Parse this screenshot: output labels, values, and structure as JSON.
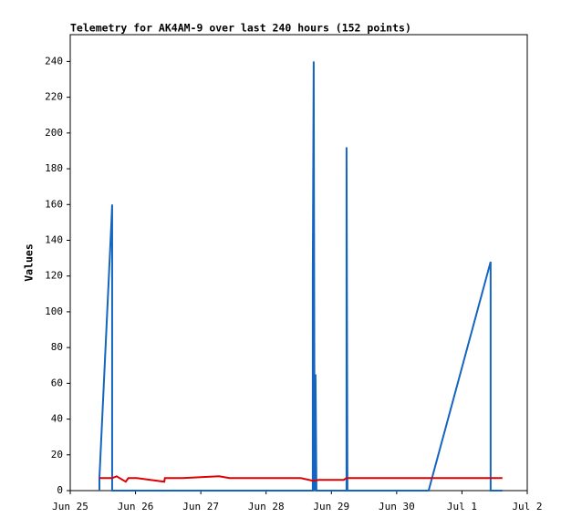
{
  "chart_data": {
    "type": "line",
    "title": "Telemetry for AK4AM-9 over last 240 hours (152 points)",
    "y_label": "Values",
    "xlim": [
      0,
      7
    ],
    "xticks": [
      {
        "value": 0,
        "label": "Jun 25"
      },
      {
        "value": 1,
        "label": "Jun 26"
      },
      {
        "value": 2,
        "label": "Jun 27"
      },
      {
        "value": 3,
        "label": "Jun 28"
      },
      {
        "value": 4,
        "label": "Jun 29"
      },
      {
        "value": 5,
        "label": "Jun 30"
      },
      {
        "value": 6,
        "label": "Jul 1"
      },
      {
        "value": 7,
        "label": "Jul 2"
      }
    ],
    "ylim": [
      0,
      255
    ],
    "yticks": [
      0,
      20,
      40,
      60,
      80,
      100,
      120,
      140,
      160,
      180,
      200,
      220,
      240
    ],
    "grid": false,
    "series": [
      {
        "color": "#1565c0",
        "x": [
          0.447,
          0.447,
          0.628,
          0.642,
          0.642,
          3.715,
          3.715,
          3.729,
          3.743,
          3.757,
          3.771,
          4.232,
          4.232,
          4.246,
          5.489,
          6.439,
          6.439,
          6.62
        ],
        "values": [
          0,
          7,
          148,
          160,
          0,
          0,
          120,
          240,
          0,
          65,
          0,
          0,
          192,
          0,
          0,
          128,
          0,
          0
        ]
      },
      {
        "color": "#e00000",
        "x": [
          0.447,
          0.642,
          0.71,
          0.85,
          0.89,
          1.02,
          1.44,
          1.45,
          1.72,
          2.28,
          2.44,
          3.53,
          3.72,
          3.81,
          4.19,
          4.23,
          6.62
        ],
        "values": [
          7,
          7,
          8,
          5,
          7,
          7,
          5,
          7,
          7,
          8,
          7,
          7,
          5.5,
          6,
          6,
          7,
          7
        ]
      }
    ]
  }
}
